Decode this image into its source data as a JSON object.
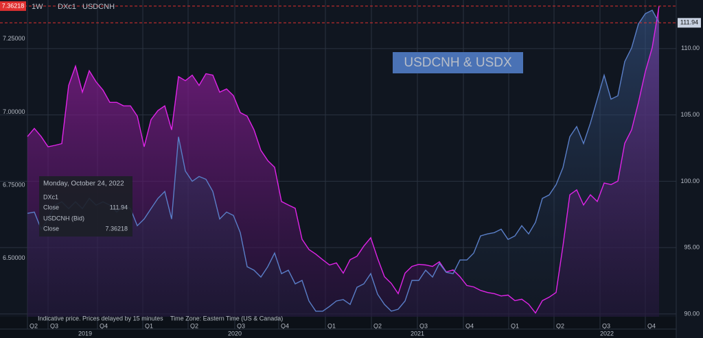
{
  "chart_data": {
    "type": "line",
    "interval": "1W",
    "annotation": "USDCNH & USDX",
    "note": "Indicative price. Prices delayed by 15 minutes",
    "timezone": "Time Zone: Eastern Time (US & Canada)",
    "xlim": [
      -4,
      94.5
    ],
    "xticks": [
      {
        "value": 0,
        "label": "Q2"
      },
      {
        "value": 3.0,
        "label": "Q3"
      },
      {
        "value": 10.2,
        "label": "Q4"
      },
      {
        "value": 16.8,
        "label": "Q1"
      },
      {
        "value": 23.4,
        "label": "Q2"
      },
      {
        "value": 30.2,
        "label": "Q3"
      },
      {
        "value": 36.6,
        "label": "Q4"
      },
      {
        "value": 43.4,
        "label": "Q1"
      },
      {
        "value": 50.1,
        "label": "Q2"
      },
      {
        "value": 56.8,
        "label": "Q3"
      },
      {
        "value": 63.5,
        "label": "Q4"
      },
      {
        "value": 70.1,
        "label": "Q1"
      },
      {
        "value": 76.7,
        "label": "Q2"
      },
      {
        "value": 83.4,
        "label": "Q3"
      },
      {
        "value": 90.0,
        "label": "Q4"
      }
    ],
    "year_ticks": [
      {
        "value": 8.4,
        "label": "2019"
      },
      {
        "value": 30.2,
        "label": "2020"
      },
      {
        "value": 56.8,
        "label": "2021"
      },
      {
        "value": 84.4,
        "label": "2022"
      }
    ],
    "ylim": [
      6.3,
      7.383
    ],
    "yticks": [
      {
        "value": 6.5,
        "label": "6.50000"
      },
      {
        "value": 6.75,
        "label": "6.75000"
      },
      {
        "value": 7.0,
        "label": "7.00000"
      },
      {
        "value": 7.25,
        "label": "7.25000"
      }
    ],
    "y2lim": [
      89.79,
      113.66
    ],
    "y2ticks": [
      {
        "value": 90,
        "label": "90.00"
      },
      {
        "value": 95,
        "label": "95.00"
      },
      {
        "value": 100,
        "label": "100.00"
      },
      {
        "value": 105,
        "label": "105.00"
      },
      {
        "value": 110,
        "label": "110.00"
      }
    ],
    "grid": true,
    "series": [
      {
        "name": "DXc1",
        "color": "#5a7fc8",
        "axis": "y2",
        "values": [
          97.58,
          97.68,
          96.39,
          97.16,
          98.2,
          98.45,
          97.94,
          98.45,
          97.94,
          98.71,
          98.2,
          98.45,
          98.2,
          97.68,
          98.2,
          97.94,
          96.65,
          97.16,
          97.94,
          98.71,
          99.23,
          97.16,
          103.35,
          100.77,
          100.0,
          100.36,
          100.15,
          99.23,
          97.16,
          97.68,
          97.42,
          96.13,
          93.56,
          93.3,
          92.78,
          93.56,
          94.59,
          93.04,
          93.3,
          92.27,
          92.53,
          90.98,
          90.21,
          90.21,
          90.57,
          90.98,
          91.08,
          90.72,
          92.01,
          92.27,
          93.04,
          91.49,
          90.72,
          90.21,
          90.36,
          90.98,
          92.53,
          92.53,
          93.3,
          92.78,
          93.81,
          93.14,
          93.04,
          94.07,
          94.07,
          94.59,
          95.88,
          96.03,
          96.13,
          96.39,
          95.62,
          95.88,
          96.65,
          96.03,
          96.91,
          98.71,
          98.97,
          99.74,
          101.03,
          103.35,
          104.12,
          102.84,
          104.38,
          106.19,
          107.99,
          106.19,
          106.44,
          109.02,
          110.05,
          111.86,
          112.63,
          112.89,
          111.94
        ]
      },
      {
        "name": "USDCNH",
        "color": "#e024e8",
        "values": [
          6.916,
          6.944,
          6.916,
          6.881,
          6.886,
          6.892,
          7.091,
          7.157,
          7.068,
          7.141,
          7.103,
          7.075,
          7.033,
          7.033,
          7.021,
          7.021,
          6.986,
          6.881,
          6.974,
          7.005,
          7.021,
          6.939,
          7.121,
          7.107,
          7.126,
          7.091,
          7.131,
          7.126,
          7.068,
          7.079,
          7.056,
          6.998,
          6.986,
          6.939,
          6.869,
          6.834,
          6.811,
          6.694,
          6.682,
          6.671,
          6.565,
          6.53,
          6.514,
          6.495,
          6.477,
          6.484,
          6.449,
          6.495,
          6.507,
          6.542,
          6.57,
          6.5,
          6.437,
          6.414,
          6.379,
          6.449,
          6.472,
          6.479,
          6.477,
          6.472,
          6.488,
          6.453,
          6.46,
          6.437,
          6.407,
          6.402,
          6.39,
          6.383,
          6.379,
          6.371,
          6.374,
          6.355,
          6.36,
          6.343,
          6.313,
          6.355,
          6.367,
          6.383,
          6.542,
          6.717,
          6.734,
          6.682,
          6.717,
          6.694,
          6.757,
          6.752,
          6.764,
          6.893,
          6.939,
          7.033,
          7.138,
          7.22,
          7.36218
        ]
      }
    ],
    "tooltip": {
      "date": "Monday, October 24, 2022",
      "items": [
        {
          "name": "DXc1",
          "field": "Close"
        },
        {
          "name": "USDCNH (Bid)",
          "field": "Close"
        }
      ]
    }
  }
}
